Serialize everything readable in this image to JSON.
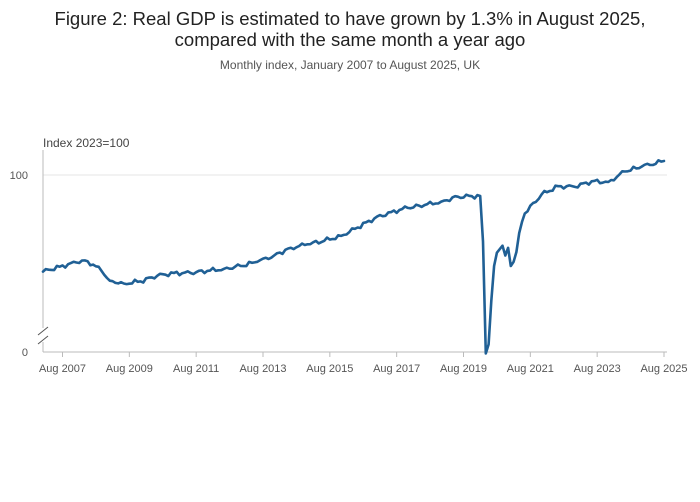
{
  "chart_data": {
    "type": "line",
    "title_lines": [
      "Figure 2: Real GDP is estimated to have grown by 1.3% in August 2025,",
      "compared with the same month a year ago"
    ],
    "subtitle": "Monthly index, January 2007 to August 2025, UK",
    "ylabel": "Index 2023=100",
    "xlabel": "",
    "y_axis_break": true,
    "ylim": [
      0,
      100
    ],
    "y_ticks": [
      {
        "value": 0,
        "label": "0"
      },
      {
        "value": 100,
        "label": "100"
      }
    ],
    "x_ticks": [
      "Aug 2007",
      "Aug 2009",
      "Aug 2011",
      "Aug 2013",
      "Aug 2015",
      "Aug 2017",
      "Aug 2019",
      "Aug 2021",
      "Aug 2023",
      "Aug 2025"
    ],
    "series": [
      {
        "name": "Real GDP",
        "color": "#206095",
        "start": "Jan 2007",
        "end": "Aug 2025",
        "frequency": "monthly",
        "keyframes": [
          [
            "Jan 2007",
            86.2
          ],
          [
            "Jul 2007",
            86.9
          ],
          [
            "Jan 2008",
            87.5
          ],
          [
            "Apr 2008",
            87.8
          ],
          [
            "Jul 2008",
            87.2
          ],
          [
            "Oct 2008",
            86.3
          ],
          [
            "Jan 2009",
            84.9
          ],
          [
            "Jun 2009",
            84.5
          ],
          [
            "Dec 2009",
            84.8
          ],
          [
            "Jun 2010",
            85.6
          ],
          [
            "Dec 2010",
            86.0
          ],
          [
            "Jun 2011",
            86.0
          ],
          [
            "Dec 2011",
            86.3
          ],
          [
            "Jun 2012",
            86.6
          ],
          [
            "Dec 2012",
            87.0
          ],
          [
            "Jun 2013",
            87.6
          ],
          [
            "Dec 2013",
            88.5
          ],
          [
            "Jun 2014",
            89.6
          ],
          [
            "Dec 2014",
            90.1
          ],
          [
            "Jun 2015",
            90.6
          ],
          [
            "Dec 2015",
            91.3
          ],
          [
            "Jun 2016",
            92.5
          ],
          [
            "Dec 2016",
            93.8
          ],
          [
            "Jun 2017",
            94.7
          ],
          [
            "Dec 2017",
            95.3
          ],
          [
            "Jun 2018",
            95.7
          ],
          [
            "Dec 2018",
            96.2
          ],
          [
            "Jun 2019",
            96.9
          ],
          [
            "Feb 2020",
            97.0
          ],
          [
            "Mar 2020",
            90.5
          ],
          [
            "Apr 2020",
            74.5
          ],
          [
            "May 2020",
            75.8
          ],
          [
            "Jun 2020",
            82.0
          ],
          [
            "Jul 2020",
            87.0
          ],
          [
            "Aug 2020",
            88.9
          ],
          [
            "Oct 2020",
            89.9
          ],
          [
            "Nov 2020",
            88.5
          ],
          [
            "Dec 2020",
            89.6
          ],
          [
            "Jan 2021",
            87.0
          ],
          [
            "Feb 2021",
            87.6
          ],
          [
            "Mar 2021",
            89.0
          ],
          [
            "Apr 2021",
            91.7
          ],
          [
            "May 2021",
            93.3
          ],
          [
            "Jun 2021",
            94.5
          ],
          [
            "Dec 2021",
            97.2
          ],
          [
            "Jun 2022",
            98.4
          ],
          [
            "Dec 2022",
            98.3
          ],
          [
            "Jun 2023",
            99.1
          ],
          [
            "Dec 2023",
            99.0
          ],
          [
            "Jun 2024",
            100.5
          ],
          [
            "Dec 2024",
            101.2
          ],
          [
            "Aug 2025",
            102.0
          ]
        ]
      }
    ]
  }
}
